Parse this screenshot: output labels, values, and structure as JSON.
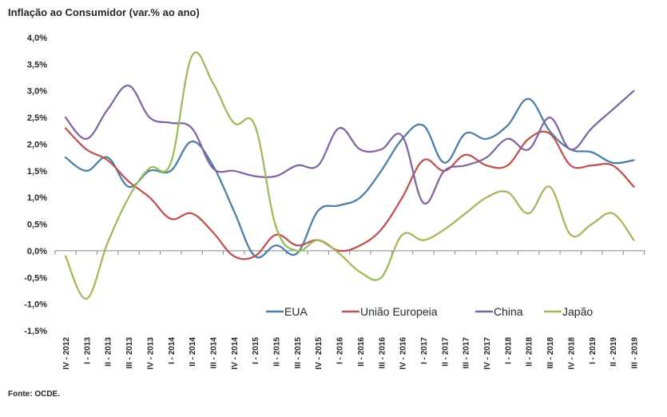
{
  "title": "Inflação ao Consumidor (var.% ao ano)",
  "source": "Fonte: OCDE.",
  "chart_data": {
    "type": "line",
    "title": "Inflação ao Consumidor (var.% ao ano)",
    "xlabel": "",
    "ylabel": "",
    "ylim": [
      -1.5,
      4.0
    ],
    "yticks": [
      4.0,
      3.5,
      3.0,
      2.5,
      2.0,
      1.5,
      1.0,
      0.5,
      0.0,
      -0.5,
      -1.0,
      -1.5
    ],
    "ytick_labels": [
      "4,0%",
      "3,5%",
      "3,0%",
      "2,5%",
      "2,0%",
      "1,5%",
      "1,0%",
      "0,5%",
      "0,0%",
      "-0,5%",
      "-1,0%",
      "-1,5%"
    ],
    "categories": [
      "IV - 2012",
      "I - 2013",
      "II - 2013",
      "III - 2013",
      "IV - 2013",
      "I - 2014",
      "II - 2014",
      "III - 2014",
      "IV - 2014",
      "I - 2015",
      "II - 2015",
      "III - 2015",
      "IV - 2015",
      "I - 2016",
      "II - 2016",
      "III - 2016",
      "IV - 2016",
      "I - 2017",
      "II - 2017",
      "III - 2017",
      "IV - 2017",
      "I - 2018",
      "II - 2018",
      "III - 2018",
      "IV - 2018",
      "I - 2019",
      "II - 2019",
      "III - 2019"
    ],
    "legend_position": "bottom-right",
    "grid": false,
    "series": [
      {
        "name": "EUA",
        "color": "#4a7ea8",
        "values": [
          1.75,
          1.5,
          1.75,
          1.2,
          1.5,
          1.5,
          2.05,
          1.6,
          0.75,
          -0.1,
          0.1,
          -0.05,
          0.75,
          0.85,
          1.0,
          1.5,
          2.1,
          2.35,
          1.65,
          2.2,
          2.1,
          2.35,
          2.85,
          2.25,
          1.9,
          1.85,
          1.65,
          1.7
        ]
      },
      {
        "name": "União Europeia",
        "color": "#c0504d",
        "values": [
          2.3,
          1.9,
          1.7,
          1.3,
          1.0,
          0.6,
          0.7,
          0.35,
          -0.1,
          -0.1,
          0.3,
          0.1,
          0.2,
          0.0,
          0.1,
          0.4,
          1.0,
          1.7,
          1.5,
          1.8,
          1.6,
          1.6,
          2.1,
          2.2,
          1.6,
          1.6,
          1.6,
          1.2
        ]
      },
      {
        "name": "China",
        "color": "#8064a2",
        "values": [
          2.5,
          2.1,
          2.65,
          3.1,
          2.5,
          2.4,
          2.3,
          1.55,
          1.5,
          1.4,
          1.4,
          1.6,
          1.6,
          2.3,
          1.9,
          1.9,
          2.15,
          0.9,
          1.5,
          1.6,
          1.75,
          2.1,
          1.9,
          2.5,
          1.9,
          2.3,
          2.65,
          3.0
        ]
      },
      {
        "name": "Japão",
        "color": "#9bbb59",
        "values": [
          -0.1,
          -0.9,
          0.15,
          1.0,
          1.55,
          1.65,
          3.65,
          3.15,
          2.4,
          2.35,
          0.45,
          0.0,
          0.2,
          -0.05,
          -0.4,
          -0.5,
          0.3,
          0.2,
          0.4,
          0.7,
          1.0,
          1.1,
          0.7,
          1.2,
          0.3,
          0.5,
          0.7,
          0.2
        ]
      }
    ]
  }
}
